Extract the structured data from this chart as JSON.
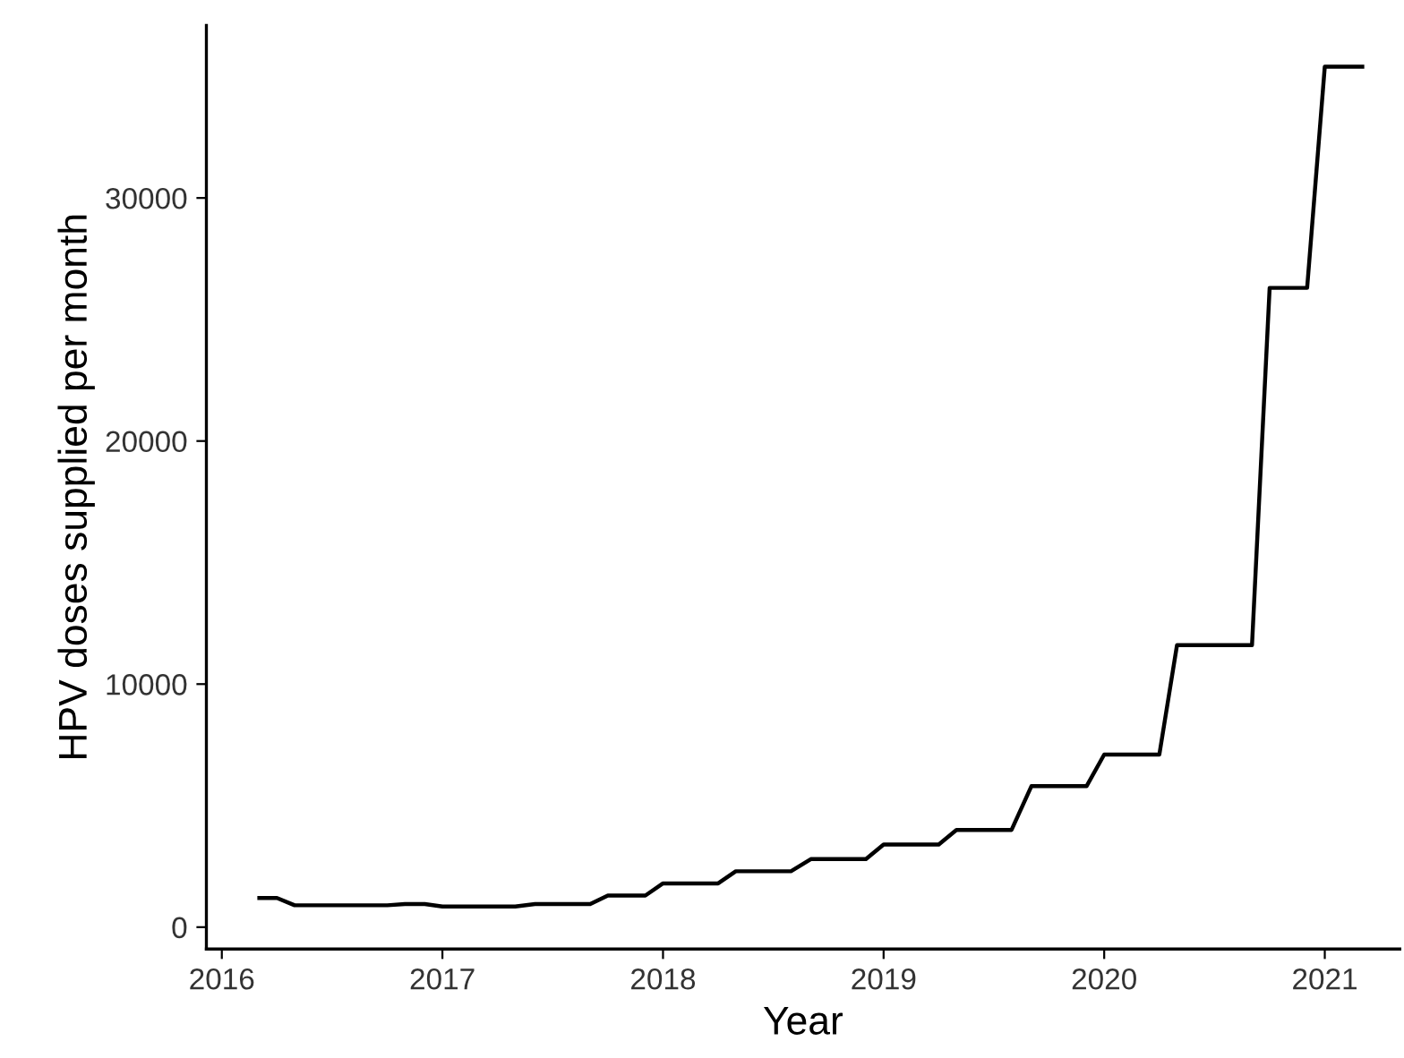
{
  "chart_data": {
    "type": "line",
    "xlabel": "Year",
    "ylabel": "HPV doses supplied per month",
    "x": [
      2016.17,
      2016.25,
      2016.33,
      2016.75,
      2016.83,
      2016.92,
      2017.0,
      2017.33,
      2017.42,
      2017.67,
      2017.75,
      2017.92,
      2018.0,
      2018.25,
      2018.33,
      2018.58,
      2018.67,
      2018.92,
      2019.0,
      2019.25,
      2019.33,
      2019.58,
      2019.67,
      2019.92,
      2020.0,
      2020.25,
      2020.33,
      2020.67,
      2020.75,
      2020.92,
      2021.0,
      2021.17
    ],
    "series": [
      {
        "color": "#000000",
        "values": [
          1200,
          1200,
          900,
          900,
          950,
          950,
          850,
          850,
          950,
          950,
          1300,
          1300,
          1800,
          1800,
          2300,
          2300,
          2800,
          2800,
          3400,
          3400,
          4000,
          4000,
          5800,
          5800,
          7100,
          7100,
          11600,
          11600,
          26300,
          26300,
          35400,
          35400
        ]
      }
    ],
    "xlim": [
      2015.93,
      2021.34
    ],
    "xticks": [
      2016,
      2017,
      2018,
      2019,
      2020,
      2021
    ],
    "ylim": [
      -900,
      37100
    ],
    "yticks": [
      0,
      10000,
      20000,
      30000
    ],
    "grid": false,
    "legend": false,
    "marker": "none",
    "line_style": "solid"
  }
}
